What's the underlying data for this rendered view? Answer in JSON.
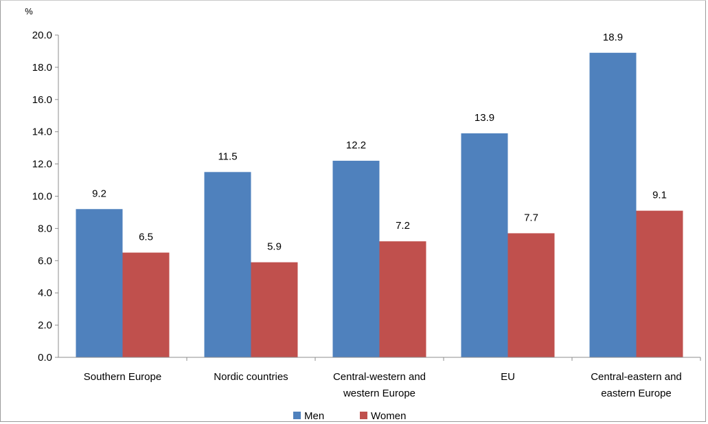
{
  "chart_data": {
    "type": "bar",
    "title": "",
    "ylabel": "%",
    "xlabel": "",
    "ylim": [
      0,
      20
    ],
    "ytick_step": 2,
    "ytick_labels": [
      "0.0",
      "2.0",
      "4.0",
      "6.0",
      "8.0",
      "10.0",
      "12.0",
      "14.0",
      "16.0",
      "18.0",
      "20.0"
    ],
    "categories": [
      [
        "Southern Europe"
      ],
      [
        "Nordic countries"
      ],
      [
        "Central-western and",
        "western Europe"
      ],
      [
        "EU"
      ],
      [
        "Central-eastern and",
        "eastern Europe"
      ]
    ],
    "series": [
      {
        "name": "Men",
        "color": "#4f81bd",
        "values": [
          9.2,
          11.5,
          12.2,
          13.9,
          18.9
        ],
        "labels": [
          "9.2",
          "11.5",
          "12.2",
          "13.9",
          "18.9"
        ]
      },
      {
        "name": "Women",
        "color": "#c0504d",
        "values": [
          6.5,
          5.9,
          7.2,
          7.7,
          9.1
        ],
        "labels": [
          "6.5",
          "5.9",
          "7.2",
          "7.7",
          "9.1"
        ]
      }
    ],
    "grid": false,
    "legend": "bottom"
  }
}
